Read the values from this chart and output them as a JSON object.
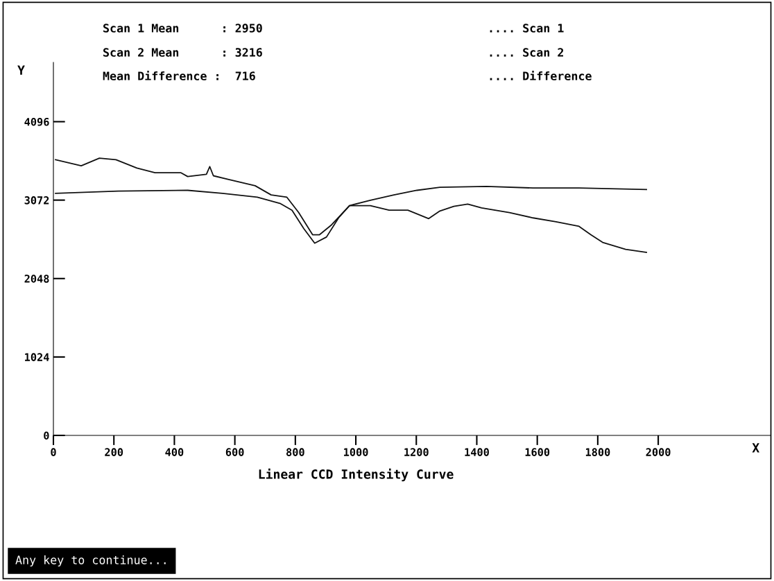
{
  "chart_data": {
    "type": "line",
    "title": "Linear CCD Intensity Curve",
    "xlabel": "X",
    "ylabel": "Y",
    "annotations": [
      "Scan 1 Mean      : 2950",
      "Scan 2 Mean      : 3216",
      "Mean Difference :  716",
      ".... Scan 1",
      ".... Scan 2",
      ".... Difference",
      "Any key to continue..."
    ],
    "series": [
      {
        "color": "#111111",
        "x": [
          7,
          92,
          152,
          207,
          276,
          336,
          421,
          444,
          506,
          517,
          529,
          582,
          667,
          720,
          772,
          811,
          857,
          880,
          920,
          979,
          1048,
          1110,
          1172,
          1241,
          1278,
          1324,
          1370,
          1416,
          1508,
          1586,
          1662,
          1738,
          1777,
          1816,
          1892,
          1961
        ],
        "values": [
          3600,
          3520,
          3620,
          3600,
          3490,
          3430,
          3430,
          3380,
          3410,
          3510,
          3390,
          3340,
          3260,
          3140,
          3110,
          2910,
          2620,
          2620,
          2750,
          3000,
          3000,
          2940,
          2940,
          2830,
          2930,
          2990,
          3020,
          2970,
          2910,
          2840,
          2790,
          2730,
          2620,
          2520,
          2430,
          2390
        ]
      },
      {
        "color": "#111111",
        "x": [
          7,
          214,
          444,
          559,
          674,
          749,
          789,
          828,
          864,
          903,
          943,
          979,
          1048,
          1126,
          1202,
          1278,
          1432,
          1586,
          1738,
          1961
        ],
        "values": [
          3160,
          3190,
          3200,
          3160,
          3110,
          3030,
          2940,
          2700,
          2510,
          2590,
          2840,
          3000,
          3070,
          3140,
          3200,
          3240,
          3250,
          3230,
          3230,
          3210
        ]
      }
    ],
    "xlim": [
      0,
      2370
    ],
    "ylim": [
      0,
      4870
    ],
    "xticks": [
      0,
      200,
      400,
      600,
      800,
      1000,
      1200,
      1400,
      1600,
      1800,
      2000
    ],
    "yticks": [
      0,
      1024,
      2048,
      3072,
      4096
    ],
    "grid": false,
    "marker": "none",
    "line_style": "solid"
  }
}
